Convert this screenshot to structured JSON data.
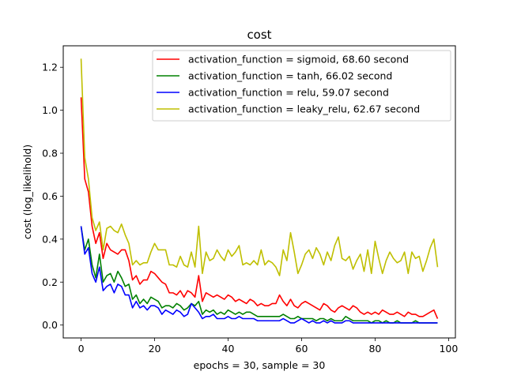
{
  "chart_data": {
    "type": "line",
    "title": "cost",
    "xlabel": "epochs = 30, sample = 30",
    "ylabel": "cost (log_likelihold)",
    "xlim": [
      -4.85,
      101.85
    ],
    "ylim": [
      -0.06,
      1.3
    ],
    "xticks": [
      0,
      20,
      40,
      60,
      80,
      100
    ],
    "yticks": [
      0.0,
      0.2,
      0.4,
      0.6,
      0.8,
      1.0,
      1.2
    ],
    "grid": false,
    "legend": "top-right",
    "series": [
      {
        "name": "activation_function = sigmoid, 68.60 second",
        "color": "#ff0000",
        "values": [
          1.06,
          0.68,
          0.62,
          0.46,
          0.38,
          0.43,
          0.31,
          0.38,
          0.35,
          0.34,
          0.33,
          0.35,
          0.35,
          0.3,
          0.21,
          0.23,
          0.19,
          0.21,
          0.21,
          0.25,
          0.24,
          0.22,
          0.2,
          0.19,
          0.15,
          0.15,
          0.14,
          0.16,
          0.13,
          0.16,
          0.15,
          0.13,
          0.23,
          0.11,
          0.15,
          0.14,
          0.13,
          0.14,
          0.13,
          0.12,
          0.14,
          0.13,
          0.11,
          0.12,
          0.11,
          0.1,
          0.12,
          0.11,
          0.09,
          0.1,
          0.09,
          0.09,
          0.1,
          0.1,
          0.14,
          0.11,
          0.09,
          0.12,
          0.09,
          0.08,
          0.1,
          0.11,
          0.1,
          0.09,
          0.08,
          0.07,
          0.1,
          0.09,
          0.07,
          0.06,
          0.08,
          0.09,
          0.08,
          0.07,
          0.09,
          0.08,
          0.06,
          0.05,
          0.06,
          0.05,
          0.06,
          0.05,
          0.07,
          0.06,
          0.05,
          0.05,
          0.06,
          0.05,
          0.04,
          0.06,
          0.05,
          0.05,
          0.04,
          0.04,
          0.05,
          0.06,
          0.07,
          0.03
        ]
      },
      {
        "name": "activation_function = tanh, 66.02 second",
        "color": "#008000",
        "values": [
          0.46,
          0.35,
          0.4,
          0.28,
          0.22,
          0.33,
          0.2,
          0.23,
          0.24,
          0.2,
          0.25,
          0.22,
          0.18,
          0.19,
          0.12,
          0.14,
          0.1,
          0.12,
          0.1,
          0.13,
          0.12,
          0.11,
          0.08,
          0.09,
          0.09,
          0.08,
          0.1,
          0.09,
          0.07,
          0.08,
          0.1,
          0.09,
          0.11,
          0.05,
          0.07,
          0.06,
          0.07,
          0.05,
          0.06,
          0.05,
          0.07,
          0.06,
          0.05,
          0.06,
          0.05,
          0.06,
          0.06,
          0.05,
          0.04,
          0.04,
          0.04,
          0.04,
          0.04,
          0.04,
          0.04,
          0.05,
          0.04,
          0.03,
          0.03,
          0.04,
          0.03,
          0.03,
          0.03,
          0.03,
          0.02,
          0.03,
          0.03,
          0.02,
          0.03,
          0.02,
          0.02,
          0.02,
          0.04,
          0.03,
          0.02,
          0.02,
          0.02,
          0.02,
          0.02,
          0.01,
          0.02,
          0.02,
          0.01,
          0.02,
          0.01,
          0.01,
          0.02,
          0.01,
          0.01,
          0.01,
          0.01,
          0.02,
          0.01,
          0.01,
          0.01,
          0.01,
          0.01,
          0.01
        ]
      },
      {
        "name": "activation_function = relu, 59.07 second",
        "color": "#0000ff",
        "values": [
          0.46,
          0.33,
          0.36,
          0.24,
          0.2,
          0.27,
          0.16,
          0.18,
          0.19,
          0.15,
          0.19,
          0.18,
          0.14,
          0.14,
          0.08,
          0.11,
          0.08,
          0.09,
          0.07,
          0.09,
          0.09,
          0.08,
          0.05,
          0.07,
          0.06,
          0.05,
          0.07,
          0.06,
          0.04,
          0.05,
          0.1,
          0.08,
          0.06,
          0.03,
          0.04,
          0.04,
          0.05,
          0.03,
          0.03,
          0.03,
          0.04,
          0.03,
          0.03,
          0.04,
          0.03,
          0.03,
          0.03,
          0.03,
          0.02,
          0.02,
          0.02,
          0.02,
          0.02,
          0.02,
          0.02,
          0.03,
          0.02,
          0.01,
          0.01,
          0.02,
          0.03,
          0.02,
          0.01,
          0.02,
          0.01,
          0.01,
          0.02,
          0.01,
          0.02,
          0.01,
          0.01,
          0.01,
          0.02,
          0.02,
          0.01,
          0.01,
          0.01,
          0.01,
          0.01,
          0.01,
          0.01,
          0.01,
          0.01,
          0.01,
          0.01,
          0.01,
          0.01,
          0.01,
          0.01,
          0.01,
          0.01,
          0.01,
          0.01,
          0.01,
          0.01,
          0.01,
          0.01,
          0.01
        ]
      },
      {
        "name": "activation_function = leaky_relu, 62.67 second",
        "color": "#bfbf00",
        "values": [
          1.24,
          0.78,
          0.68,
          0.5,
          0.44,
          0.48,
          0.35,
          0.45,
          0.46,
          0.44,
          0.43,
          0.47,
          0.42,
          0.38,
          0.28,
          0.3,
          0.28,
          0.29,
          0.29,
          0.34,
          0.38,
          0.35,
          0.35,
          0.35,
          0.28,
          0.28,
          0.27,
          0.32,
          0.28,
          0.27,
          0.34,
          0.27,
          0.46,
          0.24,
          0.34,
          0.3,
          0.31,
          0.35,
          0.32,
          0.3,
          0.35,
          0.32,
          0.34,
          0.37,
          0.28,
          0.29,
          0.28,
          0.3,
          0.28,
          0.35,
          0.28,
          0.3,
          0.29,
          0.27,
          0.23,
          0.35,
          0.3,
          0.43,
          0.34,
          0.24,
          0.28,
          0.33,
          0.35,
          0.31,
          0.36,
          0.33,
          0.28,
          0.34,
          0.3,
          0.37,
          0.41,
          0.31,
          0.3,
          0.32,
          0.26,
          0.3,
          0.33,
          0.25,
          0.35,
          0.24,
          0.39,
          0.31,
          0.24,
          0.3,
          0.34,
          0.31,
          0.29,
          0.3,
          0.34,
          0.24,
          0.34,
          0.31,
          0.32,
          0.25,
          0.3,
          0.36,
          0.4,
          0.27
        ]
      }
    ]
  }
}
